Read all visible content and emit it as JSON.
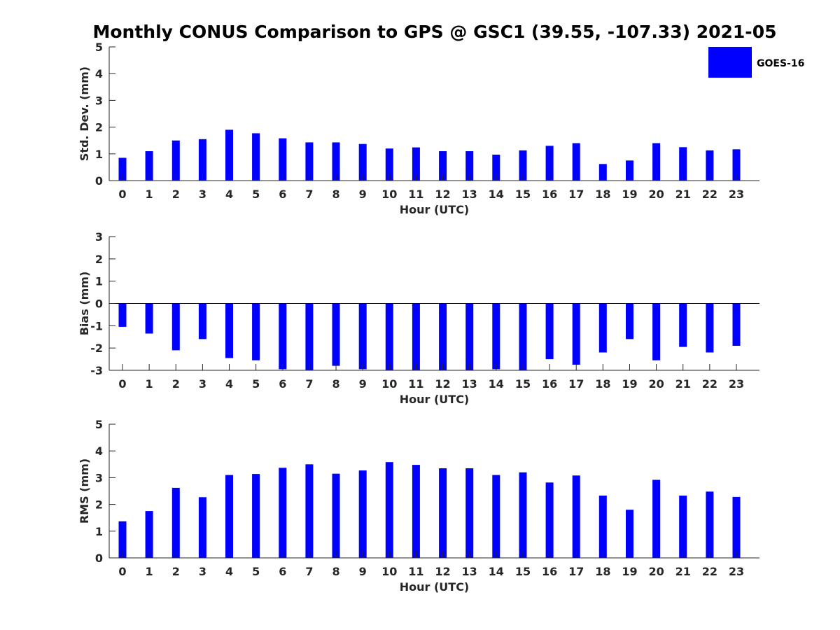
{
  "title": "Monthly CONUS Comparison to GPS @ GSC1 (39.55, -107.33) 2021-05",
  "legend": {
    "label": "GOES-16",
    "color": "#0000ff"
  },
  "chart_data": [
    {
      "type": "bar",
      "xlabel": "Hour (UTC)",
      "ylabel": "Std. Dev. (mm)",
      "categories": [
        "0",
        "1",
        "2",
        "3",
        "4",
        "5",
        "6",
        "7",
        "8",
        "9",
        "10",
        "11",
        "12",
        "13",
        "14",
        "15",
        "16",
        "17",
        "18",
        "19",
        "20",
        "21",
        "22",
        "23"
      ],
      "yticks": [
        "0",
        "1",
        "2",
        "3",
        "4",
        "5"
      ],
      "ylim": [
        0,
        5
      ],
      "series": [
        {
          "name": "GOES-16",
          "color": "#0000ff",
          "values": [
            0.85,
            1.1,
            1.5,
            1.55,
            1.9,
            1.77,
            1.58,
            1.43,
            1.43,
            1.37,
            1.2,
            1.24,
            1.1,
            1.1,
            0.97,
            1.13,
            1.3,
            1.4,
            0.62,
            0.75,
            1.4,
            1.25,
            1.13,
            1.17
          ]
        }
      ]
    },
    {
      "type": "bar",
      "xlabel": "Hour (UTC)",
      "ylabel": "Bias (mm)",
      "categories": [
        "0",
        "1",
        "2",
        "3",
        "4",
        "5",
        "6",
        "7",
        "8",
        "9",
        "10",
        "11",
        "12",
        "13",
        "14",
        "15",
        "16",
        "17",
        "18",
        "19",
        "20",
        "21",
        "22",
        "23"
      ],
      "yticks": [
        "-3",
        "-2",
        "-1",
        "0",
        "1",
        "2",
        "3"
      ],
      "ylim": [
        -3,
        3
      ],
      "series": [
        {
          "name": "GOES-16",
          "color": "#0000ff",
          "values": [
            -1.05,
            -1.35,
            -2.1,
            -1.6,
            -2.45,
            -2.55,
            -2.95,
            -3.0,
            -2.8,
            -2.95,
            -3.0,
            -3.0,
            -3.0,
            -3.0,
            -2.95,
            -3.0,
            -2.5,
            -2.75,
            -2.2,
            -1.6,
            -2.55,
            -1.95,
            -2.2,
            -1.9
          ]
        }
      ]
    },
    {
      "type": "bar",
      "xlabel": "Hour (UTC)",
      "ylabel": "RMS (mm)",
      "categories": [
        "0",
        "1",
        "2",
        "3",
        "4",
        "5",
        "6",
        "7",
        "8",
        "9",
        "10",
        "11",
        "12",
        "13",
        "14",
        "15",
        "16",
        "17",
        "18",
        "19",
        "20",
        "21",
        "22",
        "23"
      ],
      "yticks": [
        "0",
        "1",
        "2",
        "3",
        "4",
        "5"
      ],
      "ylim": [
        0,
        5
      ],
      "series": [
        {
          "name": "GOES-16",
          "color": "#0000ff",
          "values": [
            1.37,
            1.75,
            2.62,
            2.27,
            3.1,
            3.14,
            3.37,
            3.5,
            3.15,
            3.27,
            3.58,
            3.48,
            3.35,
            3.35,
            3.1,
            3.2,
            2.82,
            3.08,
            2.33,
            1.8,
            2.92,
            2.33,
            2.48,
            2.28
          ]
        }
      ]
    }
  ]
}
